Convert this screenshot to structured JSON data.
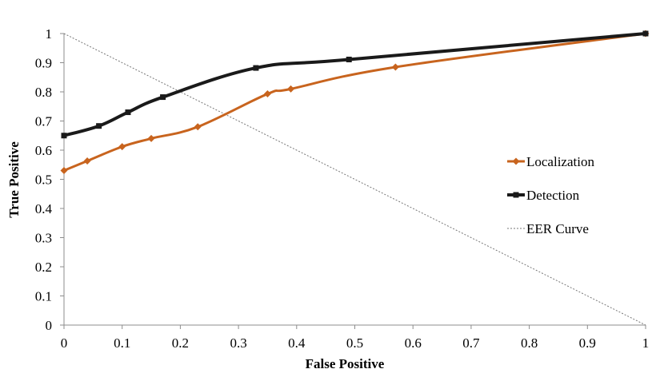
{
  "chart_data": {
    "type": "line",
    "title": "",
    "xlabel": "False Positive",
    "ylabel": "True Positive",
    "xlim": [
      0,
      1
    ],
    "ylim": [
      0,
      1
    ],
    "xticks": [
      "0",
      "0.1",
      "0.2",
      "0.3",
      "0.4",
      "0.5",
      "0.6",
      "0.7",
      "0.8",
      "0.9",
      "1"
    ],
    "yticks": [
      "0",
      "0.1",
      "0.2",
      "0.3",
      "0.4",
      "0.5",
      "0.6",
      "0.7",
      "0.8",
      "0.9",
      "1"
    ],
    "grid": false,
    "legend_position": "right",
    "series": [
      {
        "name": "Localization",
        "color": "#c8641e",
        "marker": "diamond",
        "line": "solid-smooth",
        "x": [
          0,
          0.04,
          0.1,
          0.15,
          0.23,
          0.35,
          0.39,
          0.57,
          1.0
        ],
        "y": [
          0.53,
          0.563,
          0.612,
          0.64,
          0.68,
          0.793,
          0.81,
          0.885,
          1.0
        ]
      },
      {
        "name": "Detection",
        "color": "#1a1a1a",
        "marker": "square",
        "line": "solid-smooth",
        "x": [
          0,
          0.06,
          0.11,
          0.17,
          0.33,
          0.49,
          1.0
        ],
        "y": [
          0.65,
          0.683,
          0.73,
          0.782,
          0.882,
          0.911,
          1.0
        ]
      },
      {
        "name": "EER Curve",
        "color": "#777777",
        "marker": "none",
        "line": "dotted",
        "x": [
          0,
          1
        ],
        "y": [
          1,
          0
        ]
      }
    ]
  }
}
